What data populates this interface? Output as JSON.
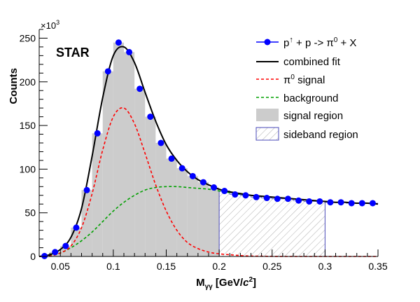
{
  "chart_data": {
    "type": "histogram",
    "experiment_label": "STAR",
    "xlabel": {
      "base": "M",
      "sub": "γγ",
      "units_pre": " [GeV/",
      "units_italic": "c",
      "units_sup": "2",
      "units_post": "]"
    },
    "ylabel": "Counts",
    "y_multiplier": {
      "base": "×10",
      "sup": "3"
    },
    "xlim": [
      0.03,
      0.35
    ],
    "ylim": [
      0,
      260
    ],
    "x_ticks": [
      0.05,
      0.1,
      0.15,
      0.2,
      0.25,
      0.3,
      0.35
    ],
    "x_tick_labels": [
      "0.05",
      "0.1",
      "0.15",
      "0.2",
      "0.25",
      "0.3",
      "0.35"
    ],
    "y_ticks": [
      0,
      50,
      100,
      150,
      200,
      250
    ],
    "y_tick_labels": [
      "0",
      "50",
      "100",
      "150",
      "200",
      "250"
    ],
    "bin_edges": [
      0.03,
      0.04,
      0.05,
      0.06,
      0.07,
      0.08,
      0.09,
      0.1,
      0.11,
      0.12,
      0.13,
      0.14,
      0.15,
      0.16,
      0.17,
      0.18,
      0.19,
      0.2,
      0.21,
      0.22,
      0.23,
      0.24,
      0.25,
      0.26,
      0.27,
      0.28,
      0.29,
      0.3,
      0.31,
      0.32,
      0.33,
      0.34,
      0.35
    ],
    "counts": [
      0.5,
      5,
      12,
      33,
      76,
      141,
      212,
      245,
      234,
      192,
      160,
      130,
      112,
      101,
      92,
      85,
      79,
      75,
      71,
      70,
      68,
      67,
      66,
      66,
      64,
      63,
      63,
      62,
      62,
      61,
      61,
      61
    ],
    "signal_region": [
      0.0,
      0.2
    ],
    "sideband_region": [
      0.2,
      0.3
    ],
    "fit": {
      "x": [
        0.03,
        0.04,
        0.05,
        0.06,
        0.07,
        0.08,
        0.09,
        0.1,
        0.11,
        0.12,
        0.13,
        0.14,
        0.15,
        0.16,
        0.17,
        0.18,
        0.19,
        0.2,
        0.21,
        0.22,
        0.23,
        0.24,
        0.25,
        0.26,
        0.27,
        0.28,
        0.29,
        0.3,
        0.31,
        0.32,
        0.33,
        0.34,
        0.35
      ],
      "combined": [
        0,
        2,
        8,
        22,
        55,
        115,
        182,
        230,
        240,
        222,
        188,
        155,
        128,
        110,
        97,
        88,
        82,
        77,
        74,
        72,
        70,
        69,
        68,
        67,
        66,
        65,
        64,
        63,
        62,
        62,
        61,
        61,
        60
      ],
      "signal": [
        0,
        0.5,
        4,
        12,
        33,
        72,
        122,
        160,
        170,
        152,
        118,
        82,
        52,
        30,
        16,
        9,
        5,
        3,
        2,
        1,
        0.5,
        0.3,
        0.1,
        0,
        0,
        0,
        0,
        0,
        0,
        0,
        0,
        0,
        0
      ],
      "background": [
        0,
        1.5,
        4,
        10,
        18,
        28,
        40,
        52,
        62,
        70,
        76,
        79,
        80,
        80,
        79,
        78,
        77,
        75,
        73,
        71,
        70,
        69,
        68,
        67,
        66,
        65,
        64,
        63,
        62,
        62,
        61,
        61,
        60
      ]
    },
    "legend": [
      {
        "label_base": "p",
        "label_sup": "↑",
        "label_mid": " + p -> π",
        "label_sup2": "0",
        "label_end": " + X",
        "kind": "marker"
      },
      {
        "label": "combined fit",
        "kind": "line-black"
      },
      {
        "label_base": "π",
        "label_sup": "0",
        "label_end": " signal",
        "kind": "line-red"
      },
      {
        "label": "background",
        "kind": "line-green"
      },
      {
        "label": "signal region",
        "kind": "fill-gray"
      },
      {
        "label": "sideband region",
        "kind": "hatch-blue"
      }
    ],
    "colors": {
      "data_marker": "#0000ff",
      "combined": "#000000",
      "signal": "#ff0000",
      "background": "#00a000",
      "signal_fill": "#cccccc",
      "sideband": "#4a4ab8"
    }
  }
}
